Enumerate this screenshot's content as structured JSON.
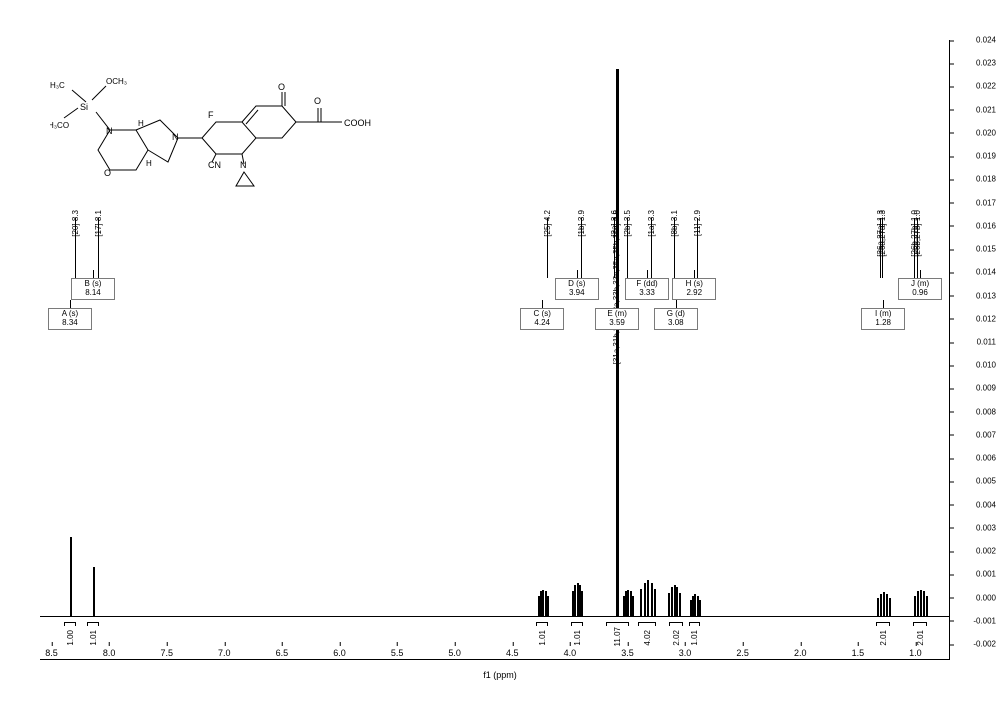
{
  "axes": {
    "x_label": "f1 (ppm)",
    "x_min": 0.7,
    "x_max": 8.6,
    "x_ticks": [
      8.5,
      8.0,
      7.5,
      7.0,
      6.5,
      6.0,
      5.5,
      5.0,
      4.5,
      4.0,
      3.5,
      3.0,
      2.5,
      2.0,
      1.5,
      1.0
    ],
    "y_min": -0.002,
    "y_max": 0.024,
    "y_ticks": [
      0.024,
      0.023,
      0.022,
      0.021,
      0.02,
      0.019,
      0.018,
      0.017,
      0.016,
      0.015,
      0.014,
      0.013,
      0.012,
      0.011,
      0.01,
      0.009,
      0.008,
      0.007,
      0.006,
      0.005,
      0.004,
      0.003,
      0.002,
      0.001,
      0.0,
      -0.001,
      -0.002
    ],
    "baseline_color": "#000000",
    "background_color": "#ffffff"
  },
  "peak_labels": [
    {
      "ppm": 8.3,
      "text": "[20] 8.3"
    },
    {
      "ppm": 8.1,
      "text": "[17] 8.1"
    },
    {
      "ppm": 4.2,
      "text": "[25] 4.2"
    },
    {
      "ppm": 3.9,
      "text": "[1b] 3.9"
    },
    {
      "ppm": 3.62,
      "text": "[2a] 3.6"
    },
    {
      "ppm": 3.6,
      "text": "[31a,31b,31c,33a,33b,33c,35a,35b,35c] 3.6"
    },
    {
      "ppm": 3.5,
      "text": "[2b] 3.5"
    },
    {
      "ppm": 3.3,
      "text": "[1a] 3.3"
    },
    {
      "ppm": 3.1,
      "text": "[8b] 3.1"
    },
    {
      "ppm": 2.9,
      "text": "[11] 2.9"
    },
    {
      "ppm": 1.31,
      "text": "[26a,27a] 1.3"
    },
    {
      "ppm": 1.29,
      "text": "[26a,27a] 1.3"
    },
    {
      "ppm": 1.01,
      "text": "[26b,27b] 1.0"
    },
    {
      "ppm": 0.99,
      "text": "[26b,27b] 1.0"
    }
  ],
  "multiplet_boxes": [
    {
      "id": "A",
      "ppm": 8.34,
      "mult": "A (s)",
      "value": "8.34",
      "row": 1
    },
    {
      "id": "B",
      "ppm": 8.14,
      "mult": "B (s)",
      "value": "8.14",
      "row": 0
    },
    {
      "id": "C",
      "ppm": 4.24,
      "mult": "C (s)",
      "value": "4.24",
      "row": 1
    },
    {
      "id": "D",
      "ppm": 3.94,
      "mult": "D (s)",
      "value": "3.94",
      "row": 0
    },
    {
      "id": "E",
      "ppm": 3.59,
      "mult": "E (m)",
      "value": "3.59",
      "row": 1
    },
    {
      "id": "F",
      "ppm": 3.33,
      "mult": "F (dd)",
      "value": "3.33",
      "row": 0
    },
    {
      "id": "G",
      "ppm": 3.08,
      "mult": "G (d)",
      "value": "3.08",
      "row": 1
    },
    {
      "id": "H",
      "ppm": 2.92,
      "mult": "H (s)",
      "value": "2.92",
      "row": 0
    },
    {
      "id": "I",
      "ppm": 1.28,
      "mult": "I (m)",
      "value": "1.28",
      "row": 1
    },
    {
      "id": "J",
      "ppm": 0.96,
      "mult": "J (m)",
      "value": "0.96",
      "row": 0
    }
  ],
  "integrals": [
    {
      "ppm": 8.34,
      "value": "1.00",
      "width": 0.1
    },
    {
      "ppm": 8.14,
      "value": "1.01",
      "width": 0.1
    },
    {
      "ppm": 4.24,
      "value": "1.01",
      "width": 0.1
    },
    {
      "ppm": 3.94,
      "value": "1.01",
      "width": 0.1
    },
    {
      "ppm": 3.59,
      "value": "11.07",
      "width": 0.2
    },
    {
      "ppm": 3.33,
      "value": "4.02",
      "width": 0.15
    },
    {
      "ppm": 3.08,
      "value": "2.02",
      "width": 0.12
    },
    {
      "ppm": 2.92,
      "value": "1.01",
      "width": 0.1
    },
    {
      "ppm": 1.28,
      "value": "2.01",
      "width": 0.12
    },
    {
      "ppm": 0.96,
      "value": "2.01",
      "width": 0.12
    }
  ],
  "peaks": [
    {
      "ppm": 8.34,
      "h": 0.0035,
      "cluster": false
    },
    {
      "ppm": 8.14,
      "h": 0.0022,
      "cluster": false
    },
    {
      "ppm": 4.24,
      "h": 0.0012,
      "cluster": true,
      "spread": 0.04
    },
    {
      "ppm": 3.94,
      "h": 0.0015,
      "cluster": true,
      "spread": 0.04
    },
    {
      "ppm": 3.6,
      "h": 0.024,
      "cluster": false,
      "thick": 3
    },
    {
      "ppm": 3.5,
      "h": 0.0012,
      "cluster": true,
      "spread": 0.04
    },
    {
      "ppm": 3.33,
      "h": 0.0016,
      "cluster": true,
      "spread": 0.06
    },
    {
      "ppm": 3.1,
      "h": 0.0014,
      "cluster": true,
      "spread": 0.05
    },
    {
      "ppm": 2.92,
      "h": 0.001,
      "cluster": true,
      "spread": 0.04
    },
    {
      "ppm": 1.28,
      "h": 0.0011,
      "cluster": true,
      "spread": 0.05
    },
    {
      "ppm": 0.96,
      "h": 0.0012,
      "cluster": true,
      "spread": 0.05
    }
  ],
  "structure": {
    "labels": [
      "OCH₃",
      "OCH₃",
      "H₃C",
      "Si",
      "N",
      "O",
      "H",
      "H",
      "N",
      "CN",
      "F",
      "O",
      "O",
      "COOH",
      "N"
    ],
    "description": "fused bicyclic pyrrolidine-morpholine with Si(OCH3)2CH3, attached to fluorinated cyano quinolone carboxylic acid with N-cyclopropyl"
  },
  "colors": {
    "text": "#000000",
    "box_border": "#7a7a7a"
  }
}
